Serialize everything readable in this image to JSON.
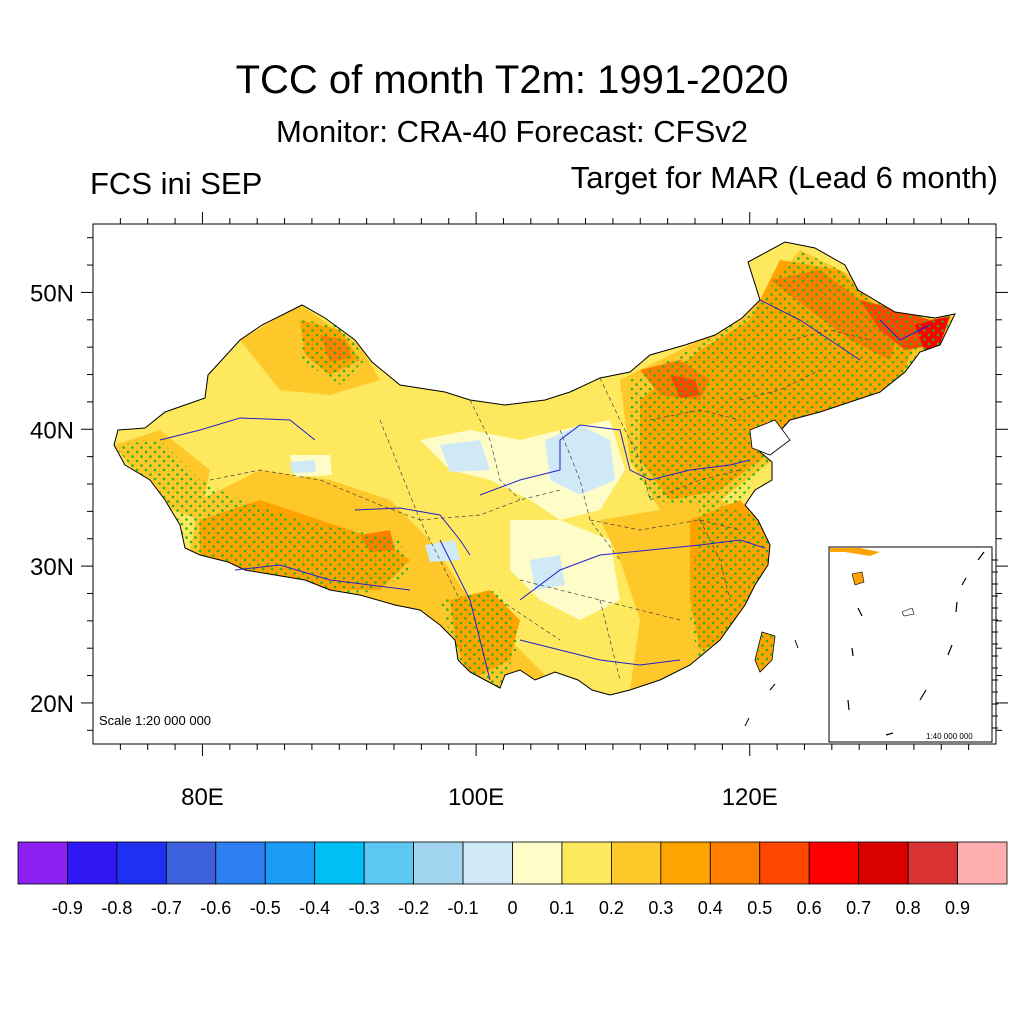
{
  "title": "TCC of month T2m: 1991-2020",
  "subtitle": "Monitor: CRA-40   Forecast: CFSv2",
  "left_label": "FCS ini SEP",
  "right_label": "Target for MAR (Lead 6 month)",
  "scale_main": "Scale 1:20 000 000",
  "scale_inset": "1:40 000 000",
  "lat_ticks": [
    {
      "label": "50N",
      "lat": 50
    },
    {
      "label": "40N",
      "lat": 40
    },
    {
      "label": "30N",
      "lat": 30
    },
    {
      "label": "20N",
      "lat": 20
    }
  ],
  "lon_ticks": [
    {
      "label": "80E",
      "lon": 80
    },
    {
      "label": "100E",
      "lon": 100
    },
    {
      "label": "120E",
      "lon": 120
    }
  ],
  "map_extent": {
    "lon": [
      72,
      138
    ],
    "lat": [
      17,
      55
    ]
  },
  "colorbar": {
    "colors": [
      "#8a21f0",
      "#3217f5",
      "#1f30f0",
      "#3d61dd",
      "#2d7ff0",
      "#1a9cf5",
      "#00bff5",
      "#5cc7f2",
      "#a2d6f0",
      "#cfe9f7",
      "#fefdc8",
      "#fee85e",
      "#fec82a",
      "#fea300",
      "#fe7f00",
      "#fe4600",
      "#fe0000",
      "#d90000",
      "#d83232",
      "#feaeae"
    ],
    "labels": [
      "-0.9",
      "-0.8",
      "-0.7",
      "-0.6",
      "-0.5",
      "-0.4",
      "-0.3",
      "-0.2",
      "-0.1",
      "0",
      "0.1",
      "0.2",
      "0.3",
      "0.4",
      "0.5",
      "0.6",
      "0.7",
      "0.8",
      "0.9"
    ]
  },
  "colors": {
    "significance_dots": "#22b522",
    "rivers": "#2222cc",
    "borders": "#000000"
  }
}
